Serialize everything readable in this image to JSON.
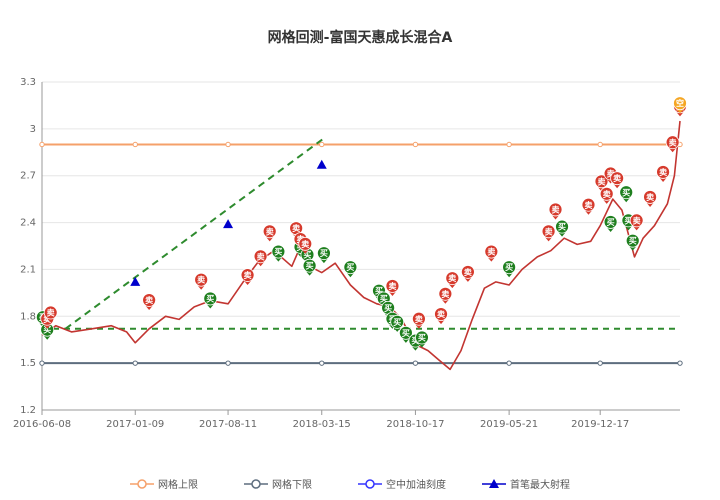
{
  "chart_data": {
    "type": "line",
    "title": "网格回测-富国天惠成长混合A",
    "xlabel": "",
    "ylabel": "",
    "x_ticks": [
      "2016-06-08",
      "2017-01-09",
      "2017-08-11",
      "2018-03-15",
      "2018-10-17",
      "2019-05-21",
      "2019-12-17"
    ],
    "x_range": [
      "2016-06-08",
      "2020-06-18"
    ],
    "ylim": [
      1.2,
      3.3
    ],
    "y_ticks": [
      "1.2",
      "1.5",
      "1.8",
      "2.1",
      "2.4",
      "2.7",
      "3",
      "3.3"
    ],
    "grid": true,
    "legend_position": "bottom",
    "legend": [
      {
        "name": "网格上限",
        "color": "#f5a06a",
        "marker": "circle"
      },
      {
        "name": "网格下限",
        "color": "#5d6d7e",
        "marker": "circle"
      },
      {
        "name": "空中加油刻度",
        "color": "#3333ff",
        "marker": "circle"
      },
      {
        "name": "首笔最大射程",
        "color": "#0000cc",
        "marker": "triangle"
      }
    ],
    "grid_upper": 2.9,
    "grid_lower": 1.5,
    "refuel_level": 1.72,
    "series": [
      {
        "color": "#c23531",
        "x": [
          "2016-06-08",
          "2016-07-10",
          "2016-08-15",
          "2016-10-01",
          "2016-11-15",
          "2016-12-20",
          "2017-01-09",
          "2017-02-10",
          "2017-03-20",
          "2017-04-20",
          "2017-05-25",
          "2017-07-01",
          "2017-08-11",
          "2017-09-15",
          "2017-10-20",
          "2017-11-25",
          "2018-01-05",
          "2018-01-30",
          "2018-02-15",
          "2018-03-15",
          "2018-04-15",
          "2018-05-20",
          "2018-06-20",
          "2018-07-20",
          "2018-08-20",
          "2018-09-15",
          "2018-10-17",
          "2018-11-15",
          "2018-12-10",
          "2019-01-05",
          "2019-01-30",
          "2019-02-25",
          "2019-03-25",
          "2019-04-20",
          "2019-05-21",
          "2019-06-20",
          "2019-07-25",
          "2019-08-25",
          "2019-09-25",
          "2019-10-25",
          "2019-11-25",
          "2019-12-17",
          "2020-01-15",
          "2020-02-05",
          "2020-03-05",
          "2020-03-25",
          "2020-04-20",
          "2020-05-20",
          "2020-06-05",
          "2020-06-18"
        ],
        "values": [
          1.68,
          1.74,
          1.7,
          1.72,
          1.74,
          1.7,
          1.63,
          1.72,
          1.8,
          1.78,
          1.86,
          1.9,
          1.88,
          2.02,
          2.15,
          2.22,
          2.12,
          2.28,
          2.12,
          2.08,
          2.14,
          2.0,
          1.92,
          1.88,
          1.86,
          1.78,
          1.62,
          1.58,
          1.52,
          1.46,
          1.58,
          1.78,
          1.98,
          2.02,
          2.0,
          2.1,
          2.18,
          2.22,
          2.3,
          2.26,
          2.28,
          2.38,
          2.55,
          2.48,
          2.18,
          2.3,
          2.38,
          2.52,
          2.7,
          3.05
        ]
      },
      {
        "color": "#2e8b2e",
        "x": [
          "2016-08-01",
          "2018-03-25"
        ],
        "values": [
          1.72,
          2.95
        ]
      }
    ],
    "max_range_points": {
      "x": [
        "2017-01-09",
        "2017-08-11",
        "2018-03-15"
      ],
      "values": [
        2.02,
        2.39,
        2.77
      ]
    },
    "buy_marks": {
      "label": "买",
      "x": [
        "2016-06-10",
        "2016-06-20",
        "2017-07-01",
        "2017-12-05",
        "2018-01-25",
        "2018-02-10",
        "2018-02-15",
        "2018-03-20",
        "2018-05-20",
        "2018-07-25",
        "2018-08-05",
        "2018-08-15",
        "2018-08-25",
        "2018-09-05",
        "2018-09-25",
        "2018-10-17",
        "2018-11-01",
        "2019-05-21",
        "2019-09-20",
        "2020-01-10",
        "2020-02-15",
        "2020-02-20",
        "2020-03-01"
      ],
      "values": [
        1.73,
        1.65,
        1.85,
        2.15,
        2.18,
        2.13,
        2.06,
        2.14,
        2.05,
        1.9,
        1.85,
        1.79,
        1.72,
        1.7,
        1.63,
        1.58,
        1.6,
        2.05,
        2.31,
        2.34,
        2.53,
        2.35,
        2.22
      ]
    },
    "sell_marks": {
      "label": "卖",
      "x": [
        "2016-06-20",
        "2016-06-28",
        "2017-02-10",
        "2017-06-10",
        "2017-09-25",
        "2017-10-25",
        "2017-11-15",
        "2018-01-15",
        "2018-01-25",
        "2018-02-05",
        "2018-08-25",
        "2018-10-25",
        "2018-12-15",
        "2018-12-25",
        "2019-01-10",
        "2019-02-15",
        "2019-04-10",
        "2019-08-20",
        "2019-09-05",
        "2019-11-20",
        "2019-12-20",
        "2020-01-01",
        "2020-01-10",
        "2020-01-25",
        "2020-03-10",
        "2020-04-10",
        "2020-05-10",
        "2020-06-01",
        "2020-06-18"
      ],
      "values": [
        1.72,
        1.76,
        1.84,
        1.97,
        2.0,
        2.12,
        2.28,
        2.3,
        2.23,
        2.2,
        1.93,
        1.72,
        1.75,
        1.88,
        1.98,
        2.02,
        2.15,
        2.28,
        2.42,
        2.45,
        2.6,
        2.52,
        2.65,
        2.62,
        2.35,
        2.5,
        2.66,
        2.85,
        3.08
      ]
    },
    "empty_marks": {
      "label": "空",
      "x": [
        "2020-06-18"
      ],
      "values": [
        3.1
      ]
    }
  }
}
